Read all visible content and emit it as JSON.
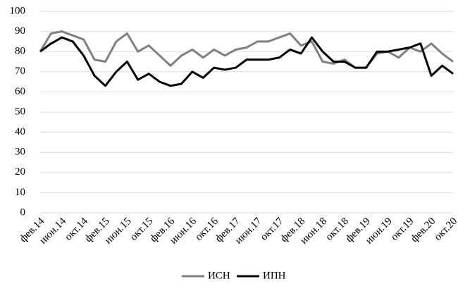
{
  "chart_data": {
    "type": "line",
    "categories": [
      "фев.14",
      null,
      "июн.14",
      null,
      "окт.14",
      null,
      "фев.15",
      null,
      "июн.15",
      null,
      "окт.15",
      null,
      "фев.16",
      null,
      "июн.16",
      null,
      "окт.16",
      null,
      "фев.17",
      null,
      "июн.17",
      null,
      "окт.17",
      null,
      "фев.18",
      null,
      "июн.18",
      null,
      "окт.18",
      null,
      "фев.19",
      null,
      "июн.19",
      null,
      "окт.19",
      null,
      "фев.20",
      null,
      "окт.20"
    ],
    "series": [
      {
        "name": "ИСН",
        "color": "#808080",
        "values": [
          80,
          89,
          90,
          88,
          86,
          76,
          75,
          85,
          89,
          80,
          83,
          78,
          73,
          78,
          81,
          77,
          81,
          78,
          81,
          82,
          85,
          85,
          87,
          89,
          83,
          85,
          75,
          74,
          76,
          72,
          72,
          79,
          80,
          77,
          82,
          80,
          84,
          79,
          75
        ]
      },
      {
        "name": "ИПН",
        "color": "#000000",
        "values": [
          80,
          84,
          87,
          85,
          78,
          68,
          63,
          70,
          75,
          66,
          69,
          65,
          63,
          64,
          70,
          67,
          72,
          71,
          72,
          76,
          76,
          76,
          77,
          81,
          79,
          87,
          80,
          75,
          75,
          72,
          72,
          80,
          80,
          81,
          82,
          84,
          68,
          73,
          69
        ]
      }
    ],
    "ylim": [
      0,
      100
    ],
    "yticks": [
      0,
      10,
      20,
      30,
      40,
      50,
      60,
      70,
      80,
      90,
      100
    ],
    "grid": true,
    "legend": "bottom"
  }
}
